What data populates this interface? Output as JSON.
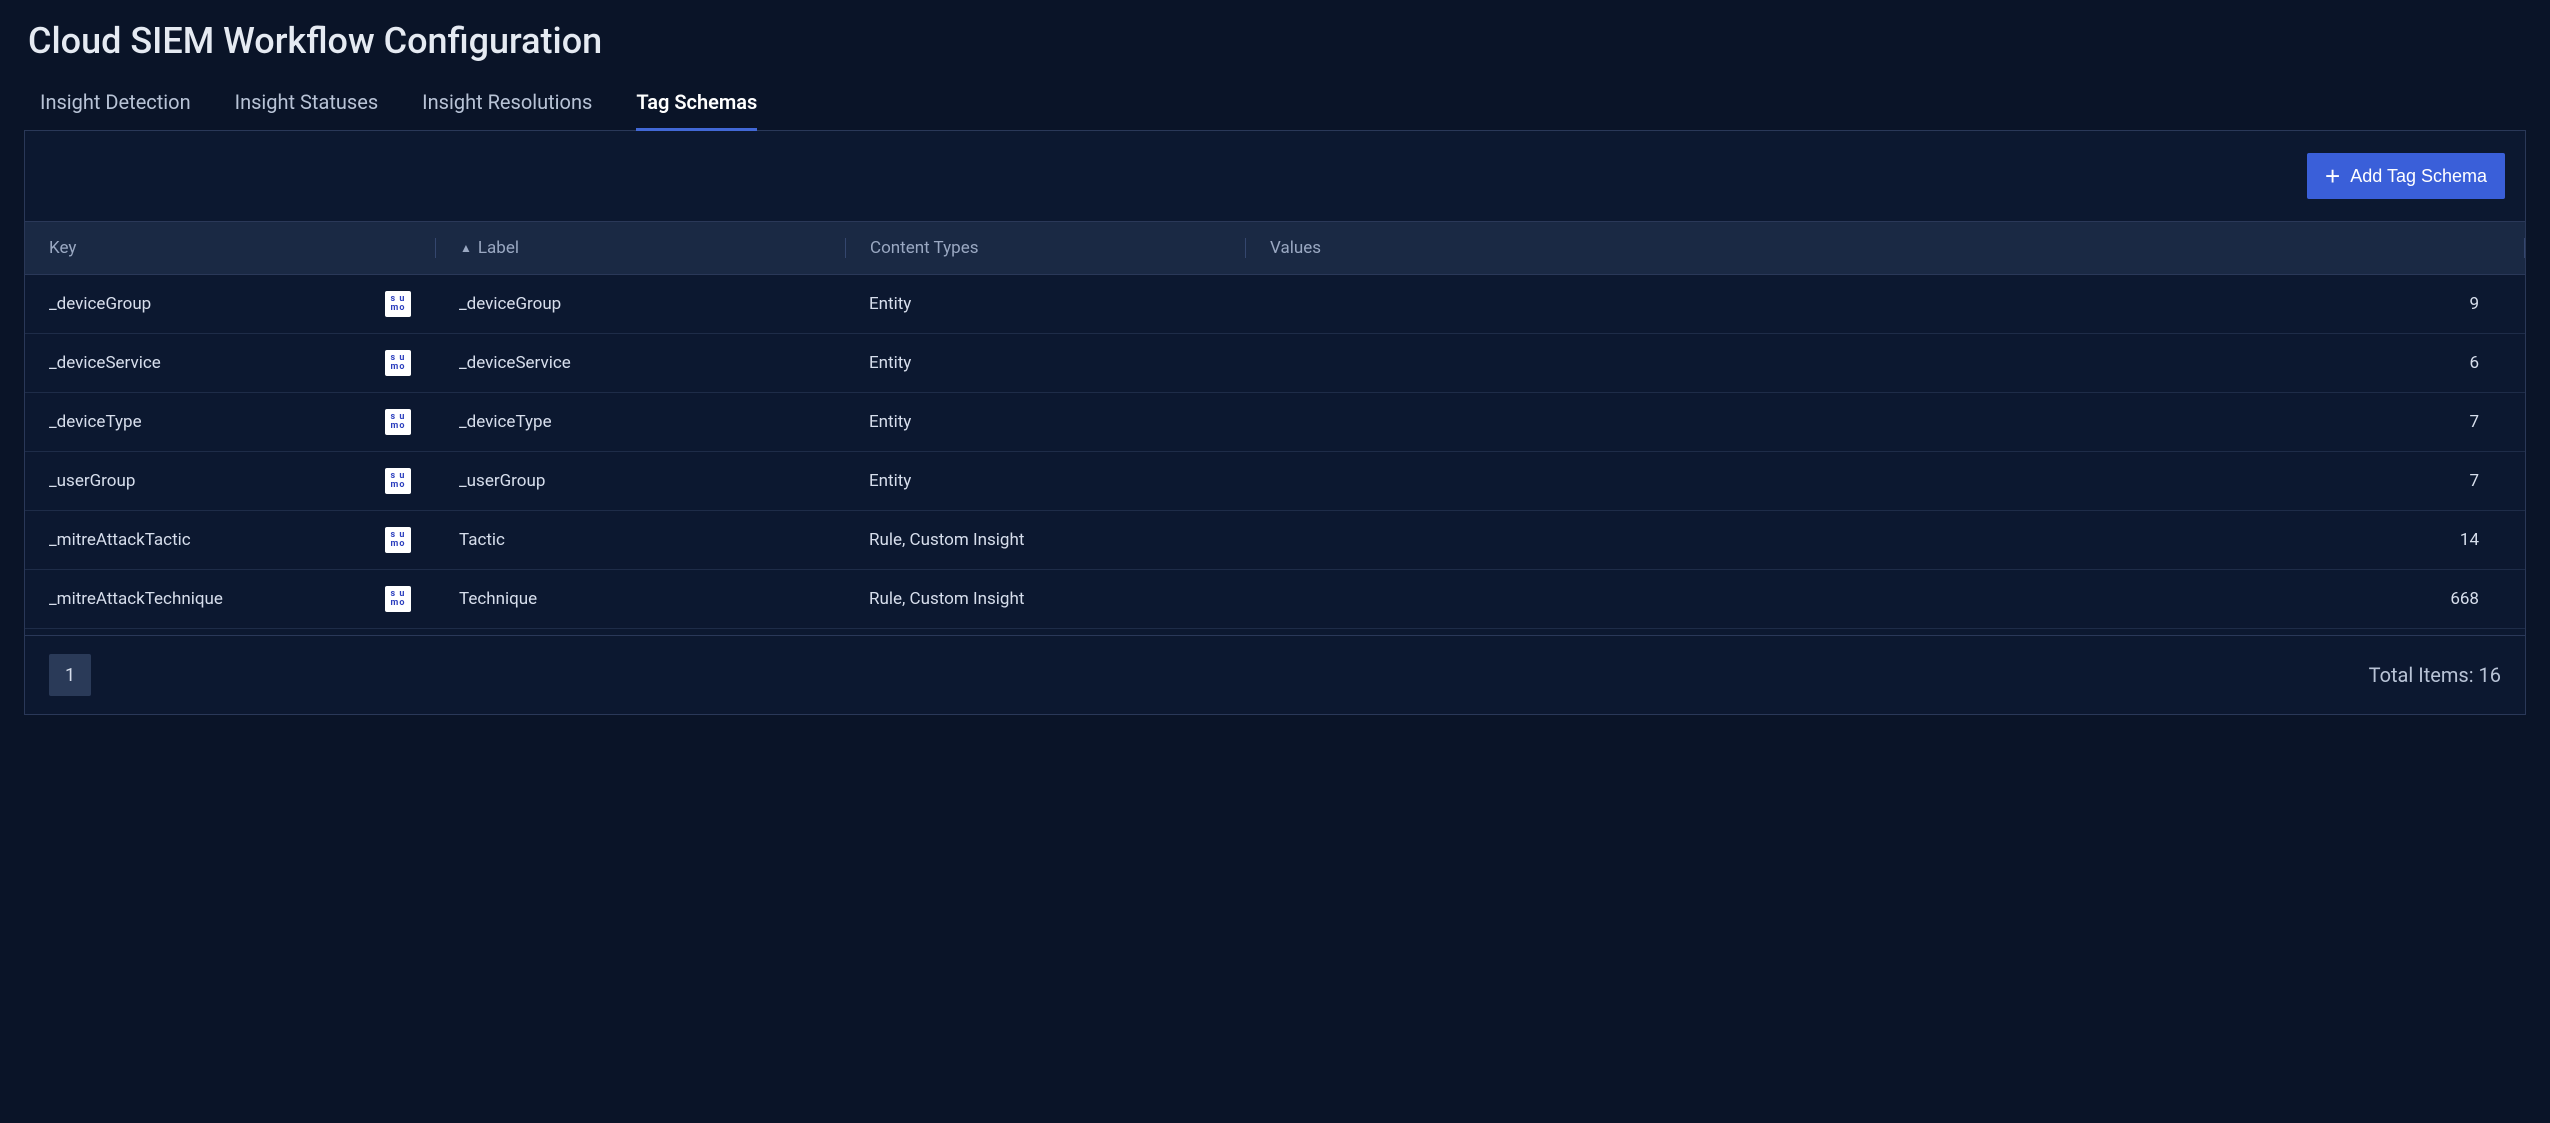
{
  "page": {
    "title": "Cloud SIEM Workflow Configuration"
  },
  "tabs": {
    "items": [
      {
        "label": "Insight Detection",
        "active": false
      },
      {
        "label": "Insight Statuses",
        "active": false
      },
      {
        "label": "Insight Resolutions",
        "active": false
      },
      {
        "label": "Tag Schemas",
        "active": true
      }
    ]
  },
  "toolbar": {
    "add_label": "Add Tag Schema"
  },
  "table": {
    "columns": {
      "key": "Key",
      "label": "Label",
      "content_types": "Content Types",
      "values": "Values"
    },
    "sort_column": "label",
    "sort_dir": "asc",
    "rows": [
      {
        "key": "_deviceGroup",
        "badge": "sumo",
        "label": "_deviceGroup",
        "content_types": "Entity",
        "values": "9"
      },
      {
        "key": "_deviceService",
        "badge": "sumo",
        "label": "_deviceService",
        "content_types": "Entity",
        "values": "6"
      },
      {
        "key": "_deviceType",
        "badge": "sumo",
        "label": "_deviceType",
        "content_types": "Entity",
        "values": "7"
      },
      {
        "key": "_userGroup",
        "badge": "sumo",
        "label": "_userGroup",
        "content_types": "Entity",
        "values": "7"
      },
      {
        "key": "_mitreAttackTactic",
        "badge": "sumo",
        "label": "Tactic",
        "content_types": "Rule, Custom Insight",
        "values": "14"
      },
      {
        "key": "_mitreAttackTechnique",
        "badge": "sumo",
        "label": "Technique",
        "content_types": "Rule, Custom Insight",
        "values": "668"
      }
    ]
  },
  "pagination": {
    "current": "1",
    "total_label": "Total Items: 16"
  },
  "colors": {
    "background": "#0a1428",
    "panel_bg": "#0c1830",
    "header_bg": "#1a2944",
    "border": "#2a3858",
    "text": "#e0e5ee",
    "muted": "#9aa8c2",
    "accent": "#3a5fd9",
    "tab_underline": "#4268d6"
  }
}
